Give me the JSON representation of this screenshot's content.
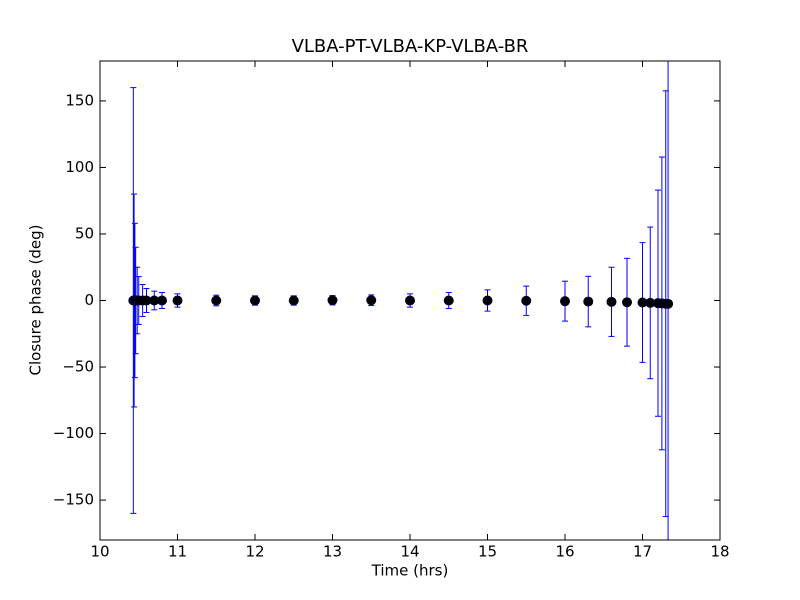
{
  "chart_data": {
    "type": "scatter",
    "title": "VLBA-PT-VLBA-KP-VLBA-BR",
    "xlabel": "Time (hrs)",
    "ylabel": "Closure phase (deg)",
    "xlim": [
      10,
      18
    ],
    "ylim": [
      -180,
      180
    ],
    "xticks": [
      10,
      11,
      12,
      13,
      14,
      15,
      16,
      17,
      18
    ],
    "yticks": [
      {
        "value": -150,
        "label": "−150"
      },
      {
        "value": -100,
        "label": "−100"
      },
      {
        "value": -50,
        "label": "−50"
      },
      0,
      50,
      100,
      150
    ],
    "x": [
      10.43,
      10.44,
      10.45,
      10.46,
      10.48,
      10.5,
      10.55,
      10.6,
      10.7,
      10.8,
      11.0,
      11.5,
      12.0,
      12.5,
      13.0,
      13.5,
      14.0,
      14.5,
      15.0,
      15.5,
      16.0,
      16.3,
      16.6,
      16.8,
      17.0,
      17.1,
      17.2,
      17.25,
      17.3,
      17.33
    ],
    "values": [
      0,
      0,
      0,
      0,
      0,
      0,
      0,
      0,
      0,
      0,
      0,
      0,
      0,
      0,
      0.2,
      0.2,
      0,
      0,
      0,
      -0.2,
      -0.5,
      -0.8,
      -1,
      -1.3,
      -1.5,
      -1.8,
      -2,
      -2.2,
      -2.4,
      -2.5
    ],
    "errors": [
      160,
      80,
      58,
      40,
      25,
      18,
      12,
      9,
      7,
      6,
      5,
      4,
      3.5,
      3.5,
      3.5,
      4,
      5,
      6,
      8,
      11,
      15,
      19,
      26,
      33,
      45,
      57,
      85,
      110,
      160,
      200
    ],
    "color": "#000000",
    "error_color": "#0000ff"
  }
}
